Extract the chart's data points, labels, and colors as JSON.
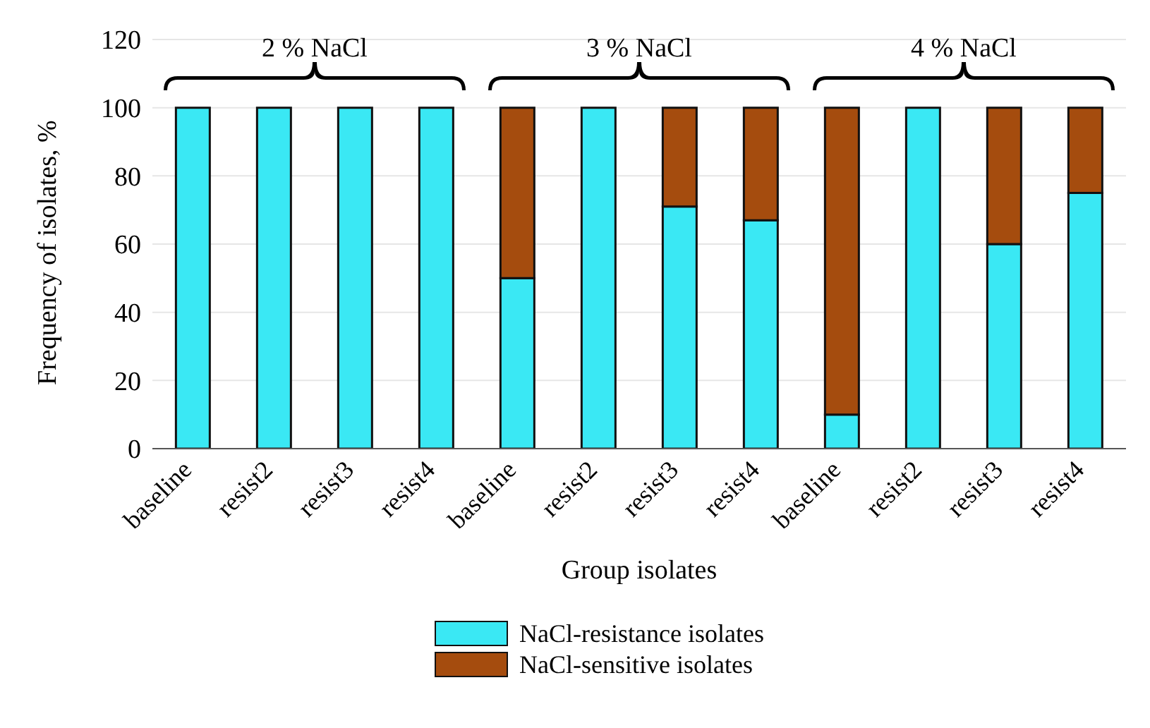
{
  "chart_data": {
    "type": "bar",
    "stacked": true,
    "xlabel": "Group isolates",
    "ylabel": "Frequency of isolates, %",
    "categories": [
      "baseline",
      "resist2",
      "resist3",
      "resist4",
      "baseline",
      "resist2",
      "resist3",
      "resist4",
      "baseline",
      "resist2",
      "resist3",
      "resist4"
    ],
    "series": [
      {
        "name": "NaCl-resistance isolates",
        "color": "#3ae8f4",
        "values": [
          100,
          100,
          100,
          100,
          50,
          100,
          71,
          67,
          10,
          100,
          60,
          75
        ]
      },
      {
        "name": "NaCl-sensitive isolates",
        "color": "#a54c0e",
        "values": [
          0,
          0,
          0,
          0,
          50,
          0,
          29,
          33,
          90,
          0,
          40,
          25
        ]
      }
    ],
    "ylim": [
      0,
      120
    ],
    "yticks": [
      0,
      20,
      40,
      60,
      80,
      100,
      120
    ],
    "grid": "y",
    "legend": "bottom",
    "annotations": [
      "2 % NaCl",
      "3 % NaCl",
      "4 % NaCl"
    ]
  }
}
